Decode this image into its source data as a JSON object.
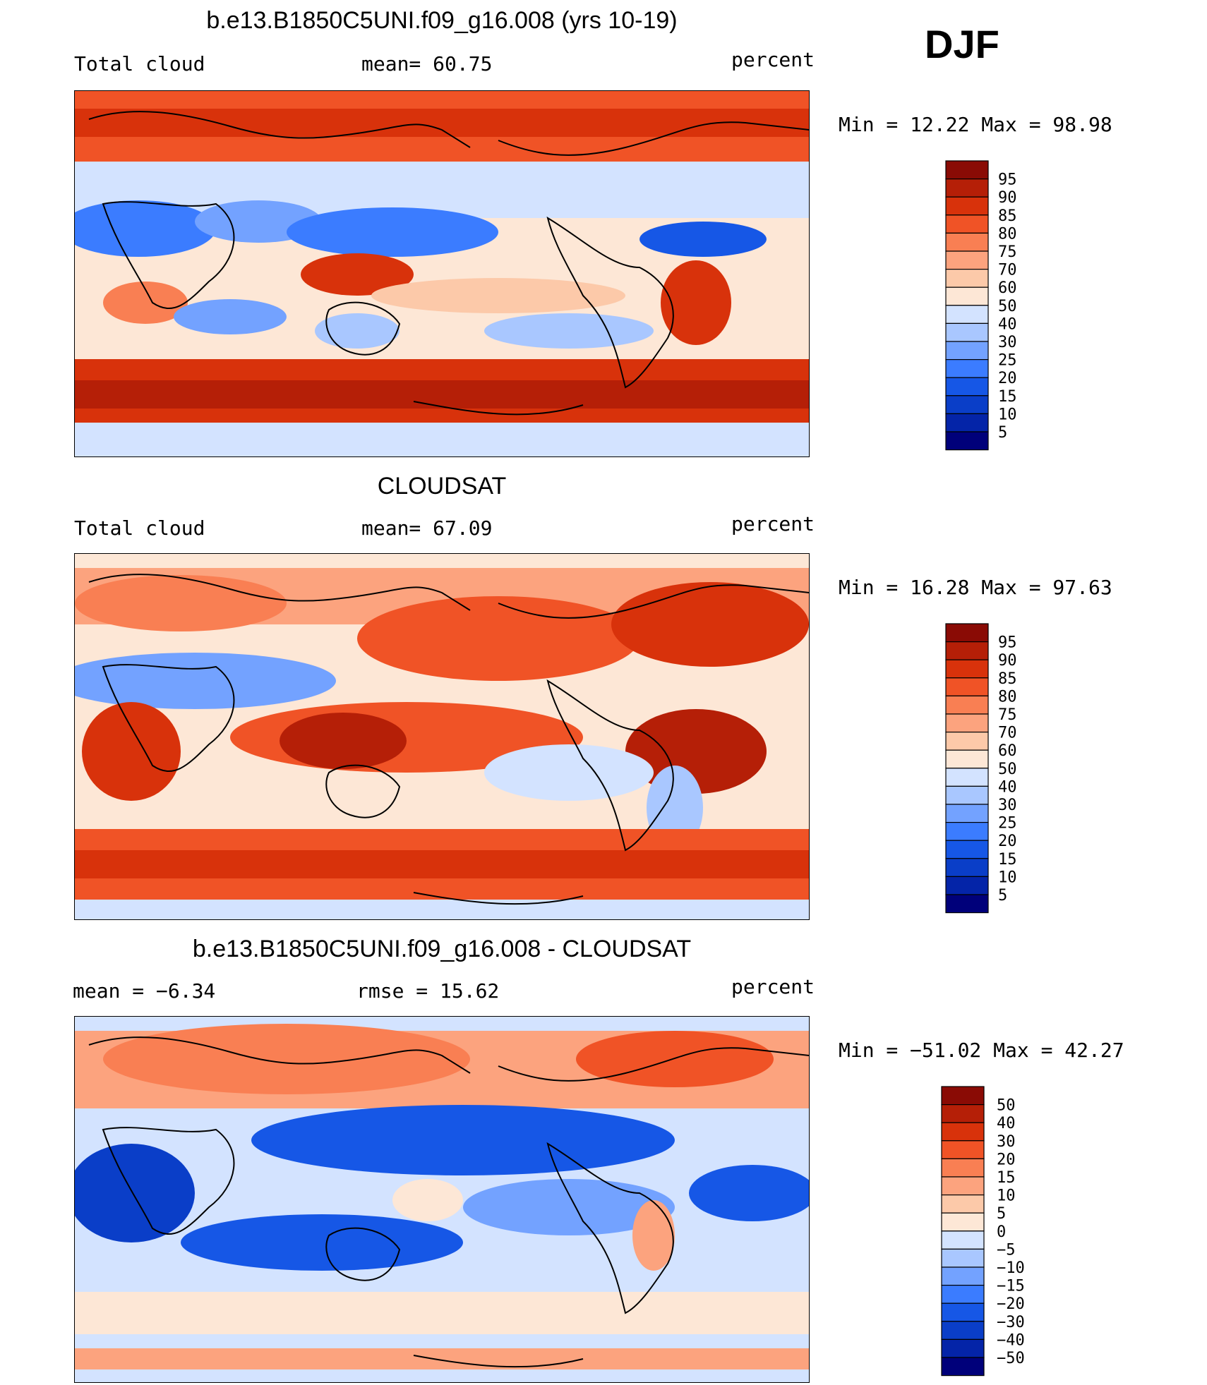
{
  "season_label": "DJF",
  "colors": {
    "seq_scale": [
      "#00007a",
      "#0424a8",
      "#0a3ec8",
      "#1657e6",
      "#3b7cff",
      "#73a2ff",
      "#a9c7ff",
      "#d3e3ff",
      "#fde7d6",
      "#fcc9a9",
      "#fca37e",
      "#f97f53",
      "#f05326",
      "#d8320b",
      "#b51f07",
      "#8a0b05"
    ],
    "div_scale": [
      "#00007a",
      "#0424a8",
      "#0a3ec8",
      "#1657e6",
      "#3b7cff",
      "#73a2ff",
      "#a9c7ff",
      "#d3e3ff",
      "#fde7d6",
      "#fcc9a9",
      "#fca37e",
      "#f97f53",
      "#f05326",
      "#d8320b",
      "#b51f07",
      "#8a0b05"
    ],
    "coast": "#000000"
  },
  "panels": [
    {
      "title": "b.e13.B1850C5UNI.f09_g16.008 (yrs 10-19)",
      "left": "Total cloud",
      "center": "mean=   60.75",
      "right": "percent",
      "minmax": "Min =   12.22 Max =   98.98",
      "colorbar_labels": [
        "95",
        "90",
        "85",
        "80",
        "75",
        "70",
        "60",
        "50",
        "40",
        "30",
        "25",
        "20",
        "15",
        "10",
        "5"
      ]
    },
    {
      "title": "CLOUDSAT",
      "left": "Total cloud",
      "center": "mean=   67.09",
      "right": "percent",
      "minmax": "Min =   16.28 Max =   97.63",
      "colorbar_labels": [
        "95",
        "90",
        "85",
        "80",
        "75",
        "70",
        "60",
        "50",
        "40",
        "30",
        "25",
        "20",
        "15",
        "10",
        "5"
      ]
    },
    {
      "title": "b.e13.B1850C5UNI.f09_g16.008 - CLOUDSAT",
      "left": "mean =   −6.34",
      "center": "rmse =   15.62",
      "right": "percent",
      "minmax": "Min = −51.02 Max =   42.27",
      "colorbar_labels": [
        "50",
        "40",
        "30",
        "20",
        "15",
        "10",
        "5",
        "0",
        "−5",
        "−10",
        "−15",
        "−20",
        "−30",
        "−40",
        "−50"
      ]
    }
  ]
}
